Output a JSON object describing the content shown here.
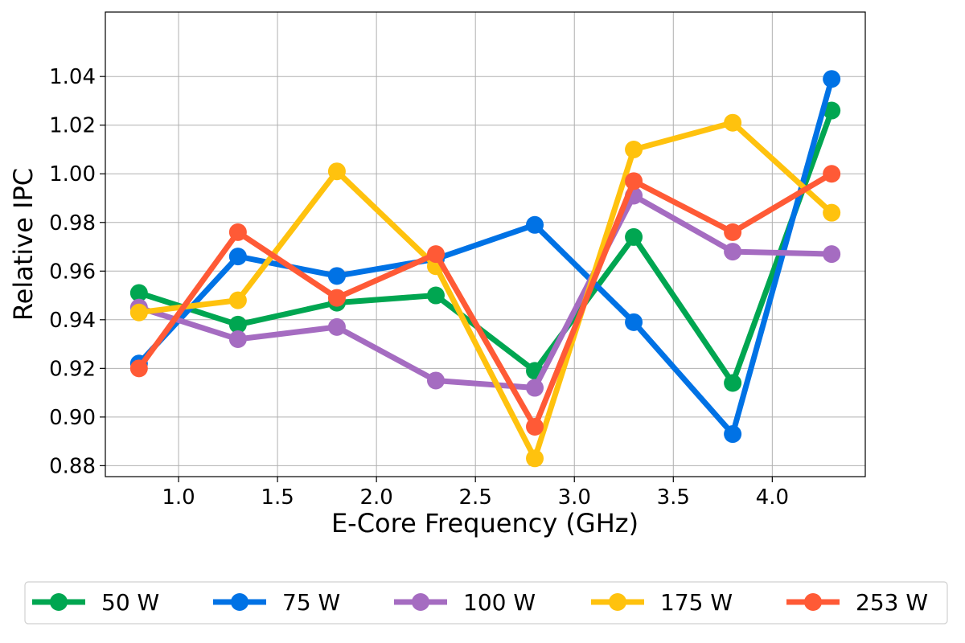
{
  "chart_data": {
    "type": "line",
    "title": "",
    "xlabel": "E-Core Frequency (GHz)",
    "ylabel": "Relative IPC",
    "xlim": [
      0.63,
      4.47
    ],
    "ylim": [
      0.8755,
      1.0665
    ],
    "xticks": [
      1.0,
      1.5,
      2.0,
      2.5,
      3.0,
      3.5,
      4.0
    ],
    "xtick_labels": [
      "1.0",
      "1.5",
      "2.0",
      "2.5",
      "3.0",
      "3.5",
      "4.0"
    ],
    "yticks": [
      0.88,
      0.9,
      0.92,
      0.94,
      0.96,
      0.98,
      1.0,
      1.02,
      1.04
    ],
    "ytick_labels": [
      "0.88",
      "0.90",
      "0.92",
      "0.94",
      "0.96",
      "0.98",
      "1.00",
      "1.02",
      "1.04"
    ],
    "grid": true,
    "legend_position": "bottom-center",
    "x": [
      0.8,
      1.3,
      1.8,
      2.3,
      2.8,
      3.3,
      3.8,
      4.3
    ],
    "series": [
      {
        "name": "50 W",
        "color": "#00a651",
        "values": [
          0.951,
          0.938,
          0.947,
          0.95,
          0.919,
          0.974,
          0.914,
          1.026
        ]
      },
      {
        "name": "75 W",
        "color": "#0072e5",
        "values": [
          0.922,
          0.966,
          0.958,
          0.965,
          0.979,
          0.939,
          0.893,
          1.039
        ]
      },
      {
        "name": "100 W",
        "color": "#a56cc1",
        "values": [
          0.945,
          0.932,
          0.937,
          0.915,
          0.912,
          0.991,
          0.968,
          0.967
        ]
      },
      {
        "name": "175 W",
        "color": "#ffc20e",
        "values": [
          0.943,
          0.948,
          1.001,
          0.962,
          0.883,
          1.01,
          1.021,
          0.984
        ]
      },
      {
        "name": "253 W",
        "color": "#ff5a36",
        "values": [
          0.92,
          0.976,
          0.949,
          0.967,
          0.896,
          0.997,
          0.976,
          1.0
        ]
      }
    ]
  }
}
